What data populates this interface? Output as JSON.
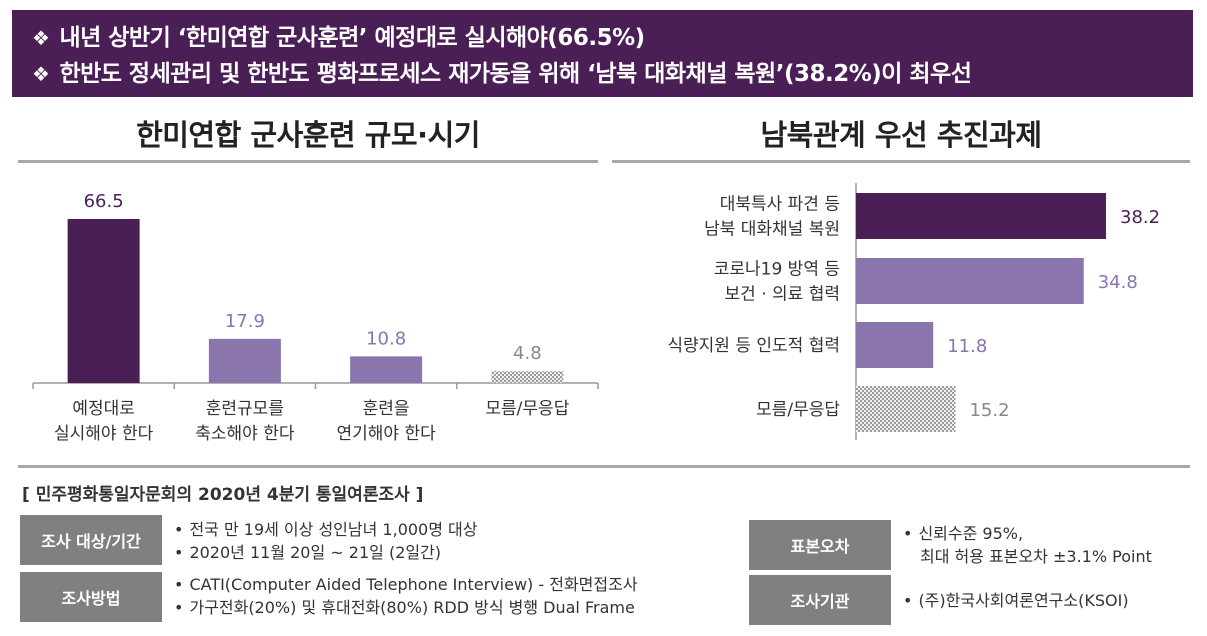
{
  "header": {
    "bullet": "❖",
    "line1": "내년 상반기 ‘한미연합 군사훈련’ 예정대로 실시해야(66.5%)",
    "line2": "한반도 정세관리 및 한반도 평화프로세스 재가동을 위해 ‘남북 대화채널 복원’(38.2%)이 최우선"
  },
  "left_title": "한미연합 군사훈련 규모·시기",
  "right_title": "남북관계 우선 추진과제",
  "chart_data": [
    {
      "type": "bar",
      "title": "한미연합 군사훈련 규모·시기",
      "categories": [
        [
          "예정대로",
          "실시해야 한다"
        ],
        [
          "훈련규모를",
          "축소해야 한다"
        ],
        [
          "훈련을",
          "연기해야 한다"
        ],
        [
          "모름/무응답"
        ]
      ],
      "values": [
        66.5,
        17.9,
        10.8,
        4.8
      ],
      "value_labels": [
        "66.5",
        "17.9",
        "10.8",
        "4.8"
      ],
      "colors": [
        "#4a1f55",
        "#8a76ad",
        "#8a76ad",
        "pattern"
      ],
      "label_colors": [
        "#4a1f55",
        "#8a76ad",
        "#8a76ad",
        "#888888"
      ]
    },
    {
      "type": "bar",
      "orientation": "horizontal",
      "title": "남북관계 우선 추진과제",
      "categories": [
        [
          "대북특사 파견 등",
          "남북 대화채널 복원"
        ],
        [
          "코로나19 방역 등",
          "보건 · 의료 협력"
        ],
        [
          "식량지원 등 인도적 협력"
        ],
        [
          "모름/무응답"
        ]
      ],
      "values": [
        38.2,
        34.8,
        11.8,
        15.2
      ],
      "value_labels": [
        "38.2",
        "34.8",
        "11.8",
        "15.2"
      ],
      "colors": [
        "#4a1f55",
        "#8a76ad",
        "#8a76ad",
        "pattern"
      ],
      "label_colors": [
        "#4a1f55",
        "#8a76ad",
        "#8a76ad",
        "#888888"
      ]
    }
  ],
  "survey": {
    "title": "[ 민주평화통일자문회의 2020년 4분기 통일여론조사 ]",
    "target_label": "조사 대상/기간",
    "target_lines": [
      "전국 만 19세 이상 성인남녀 1,000명 대상",
      "2020년 11월 20일 ~ 21일 (2일간)"
    ],
    "method_label": "조사방법",
    "method_lines": [
      "CATI(Computer Aided Telephone Interview) - 전화면접조사",
      "가구전화(20%) 및 휴대전화(80%)  RDD 방식 병행 Dual Frame"
    ],
    "error_label": "표본오차",
    "error_lines": [
      "신뢰수준 95%,",
      "최대 허용 표본오차 ±3.1% Point"
    ],
    "org_label": "조사기관",
    "org_lines": [
      "(주)한국사회여론연구소(KSOI)"
    ],
    "bullet": "•"
  }
}
